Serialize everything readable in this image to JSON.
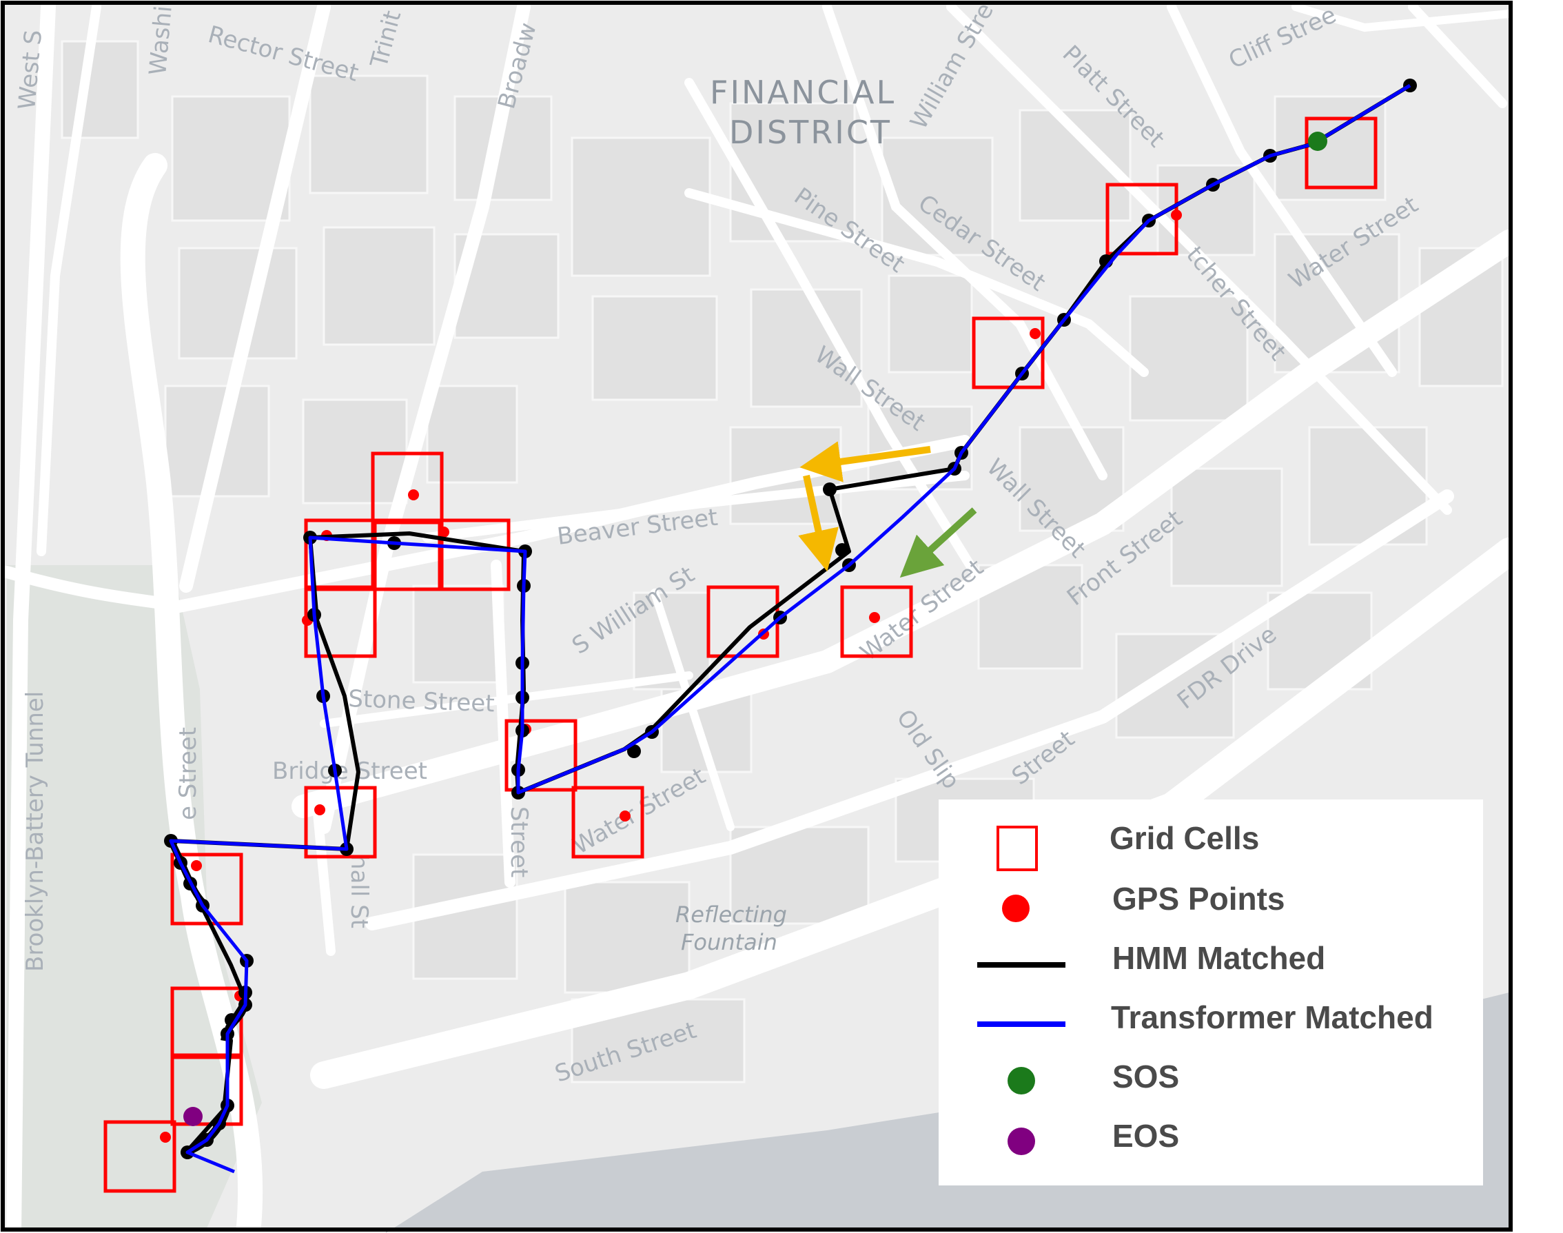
{
  "map": {
    "district_label_line1": "FINANCIAL",
    "district_label_line2": "DISTRICT",
    "fountain_label_line1": "Reflecting",
    "fountain_label_line2": "Fountain",
    "streets": [
      "Rector Street",
      "Trinit",
      "Broadw",
      "William Stre",
      "Platt Street",
      "Cliff Stree",
      "Washi",
      "West S",
      "Pine Street",
      "Cedar Street",
      "Wall Street",
      "Water Street",
      "tcher Street",
      "Beaver Street",
      "S William St",
      "Stone Street",
      "Bridge Street",
      "Water Street",
      "Front Street",
      "FDR Drive",
      "Old Slip",
      "South Street",
      "Brooklyn-Battery Tunnel",
      "e Street",
      "hall St",
      "Street",
      "Water Street",
      "Wall Street",
      "Street"
    ]
  },
  "legend": {
    "grid_cells": "Grid Cells",
    "gps_points": "GPS Points",
    "hmm_matched": "HMM Matched",
    "transformer_matched": "Transformer Matched",
    "sos": "SOS",
    "eos": "EOS"
  },
  "colors": {
    "grid_cell": "#ff0000",
    "gps_point": "#ff0000",
    "hmm_line": "#000000",
    "transformer_line": "#0000ff",
    "sos": "#1b7a1b",
    "eos": "#800080",
    "orange_arrow": "#f5b800",
    "green_arrow": "#6aa33a"
  }
}
